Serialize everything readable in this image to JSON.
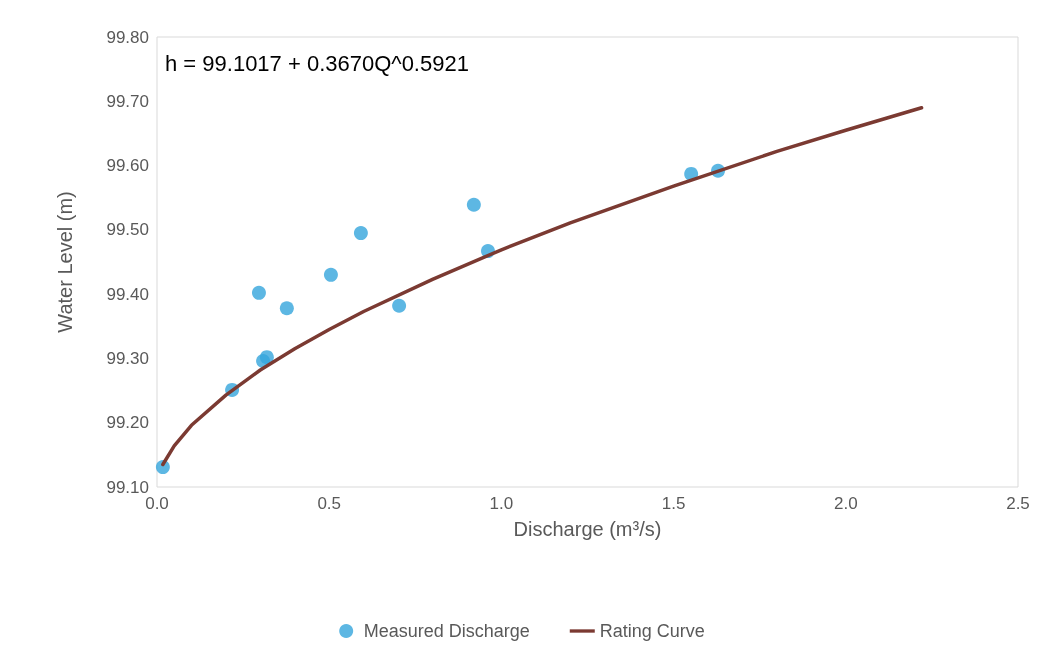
{
  "chart_data": {
    "type": "scatter",
    "xlabel": "Discharge (m³/s)",
    "ylabel": "Water Level (m)",
    "annotations": [
      "h = 99.1017 + 0.3670Q^0.5921"
    ],
    "xlim": [
      0,
      2.5
    ],
    "xticks": [
      {
        "value": 0,
        "label": "0.0"
      },
      {
        "value": 0.5,
        "label": "0.5"
      },
      {
        "value": 1,
        "label": "1.0"
      },
      {
        "value": 1.5,
        "label": "1.5"
      },
      {
        "value": 2,
        "label": "2.0"
      },
      {
        "value": 2.5,
        "label": "2.5"
      }
    ],
    "ylim": [
      99.1,
      99.8
    ],
    "yticks": [
      {
        "value": 99.1,
        "label": "99.10"
      },
      {
        "value": 99.2,
        "label": "99.20"
      },
      {
        "value": 99.3,
        "label": "99.30"
      },
      {
        "value": 99.4,
        "label": "99.40"
      },
      {
        "value": 99.5,
        "label": "99.50"
      },
      {
        "value": 99.6,
        "label": "99.60"
      },
      {
        "value": 99.7,
        "label": "99.70"
      },
      {
        "value": 99.8,
        "label": "99.80"
      }
    ],
    "grid": false,
    "legend": "bottom",
    "series": [
      {
        "name": "Measured Discharge",
        "type": "scatter",
        "marker": "circle",
        "color": "#35a5dc",
        "x": [
          0.017,
          0.218,
          0.296,
          0.308,
          0.319,
          0.377,
          0.505,
          0.592,
          0.703,
          0.92,
          0.961,
          1.551,
          1.629
        ],
        "values": [
          99.131,
          99.251,
          99.402,
          99.296,
          99.302,
          99.378,
          99.43,
          99.495,
          99.382,
          99.539,
          99.467,
          99.587,
          99.592
        ]
      },
      {
        "name": "Rating Curve",
        "type": "line",
        "marker": "none",
        "line_style": "solid",
        "color": "#7b3a32",
        "x": [
          0.017,
          0.05,
          0.1,
          0.2,
          0.3,
          0.4,
          0.5,
          0.6,
          0.8,
          1.0,
          1.2,
          1.5,
          1.8,
          2.0,
          2.22
        ],
        "values": [
          99.135,
          99.164,
          99.196,
          99.243,
          99.282,
          99.315,
          99.345,
          99.373,
          99.423,
          99.469,
          99.511,
          99.568,
          99.622,
          99.655,
          99.69
        ]
      }
    ]
  }
}
